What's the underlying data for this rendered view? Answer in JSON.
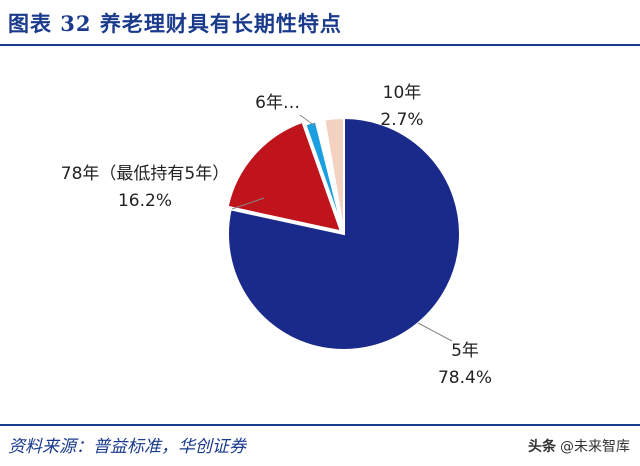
{
  "header": {
    "title": "图表  32    养老理财具有长期性特点"
  },
  "footer": {
    "source": "资料来源：普益标准，华创证券",
    "watermark_logo": "头条",
    "watermark_text": "@未来智库"
  },
  "chart_data": {
    "type": "pie",
    "slices": [
      {
        "label": "5年",
        "value": 78.4,
        "value_label": "78.4%",
        "color": "#1a2a8a"
      },
      {
        "label": "78年（最低持有5年）",
        "value": 16.2,
        "value_label": "16.2%",
        "color": "#c0141c"
      },
      {
        "label": "6年…",
        "value": 1.5,
        "value_label": "",
        "color": "#1aa0e0"
      },
      {
        "label": "",
        "value": 1.2,
        "value_label": "",
        "color": "#ffffff"
      },
      {
        "label": "10年",
        "value": 2.7,
        "value_label": "2.7%",
        "color": "#f3d2c2"
      }
    ],
    "legend": "none"
  }
}
